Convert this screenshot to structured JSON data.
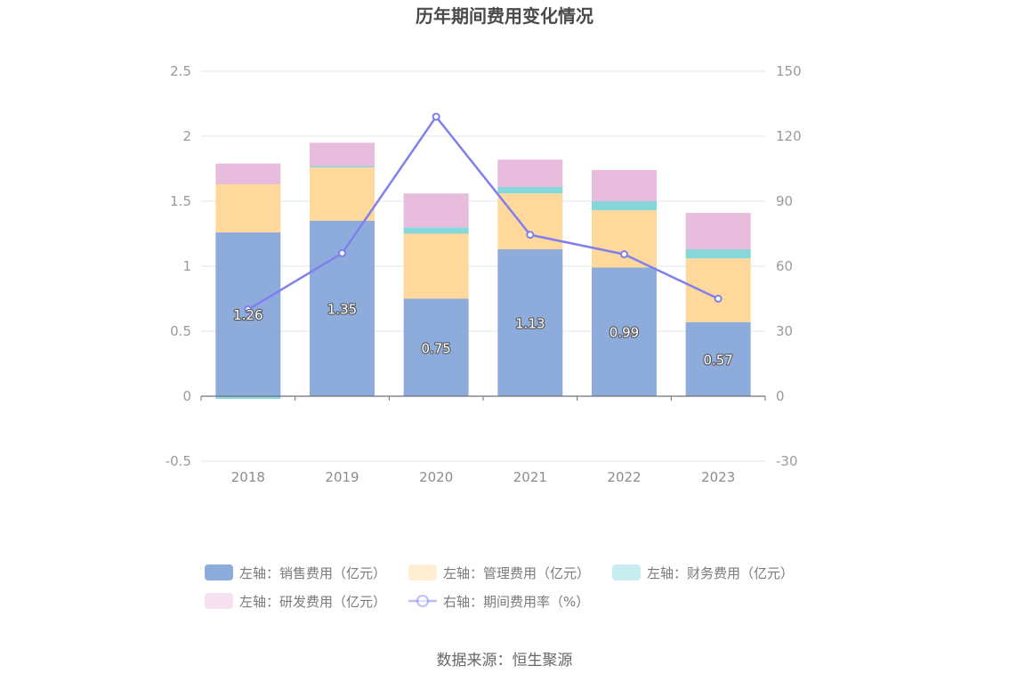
{
  "chart_data": {
    "type": "bar",
    "title": "历年期间费用变化情况",
    "categories": [
      "2018",
      "2019",
      "2020",
      "2021",
      "2022",
      "2023"
    ],
    "left_axis": {
      "ylim": [
        -0.5,
        2.5
      ],
      "ticks": [
        "2.5",
        "2",
        "1.5",
        "1",
        "0.5",
        "0",
        "-0.5"
      ],
      "tick_values": [
        2.5,
        2,
        1.5,
        1,
        0.5,
        0,
        -0.5
      ]
    },
    "right_axis": {
      "ylim": [
        -30,
        150
      ],
      "ticks": [
        "150",
        "120",
        "90",
        "60",
        "30",
        "0",
        "-30"
      ],
      "tick_values": [
        150,
        120,
        90,
        60,
        30,
        0,
        -30
      ]
    },
    "series": [
      {
        "name": "左轴：销售费用（亿元）",
        "type": "bar",
        "axis": "left",
        "color": "#8eacdb",
        "values": [
          1.26,
          1.35,
          0.75,
          1.13,
          0.99,
          0.57
        ],
        "labels": [
          "1.26",
          "1.35",
          "0.75",
          "1.13",
          "0.99",
          "0.57"
        ]
      },
      {
        "name": "左轴：管理费用（亿元）",
        "type": "bar",
        "axis": "left",
        "color": "#fed99b",
        "values": [
          0.37,
          0.41,
          0.5,
          0.43,
          0.44,
          0.49
        ]
      },
      {
        "name": "左轴：财务费用（亿元）",
        "type": "bar",
        "axis": "left",
        "color": "#86d7da",
        "values": [
          -0.02,
          0.01,
          0.05,
          0.05,
          0.07,
          0.07
        ]
      },
      {
        "name": "左轴：研发费用（亿元）",
        "type": "bar",
        "axis": "left",
        "color": "#e8bcdc",
        "values": [
          0.16,
          0.18,
          0.26,
          0.21,
          0.24,
          0.28
        ]
      },
      {
        "name": "右轴：期间费用率（%）",
        "type": "line",
        "axis": "right",
        "color": "#7f7fee",
        "values": [
          40,
          66,
          129,
          74.5,
          65.5,
          45
        ]
      }
    ],
    "grid": true,
    "legend_position": "bottom"
  },
  "source": "数据来源：恒生聚源"
}
